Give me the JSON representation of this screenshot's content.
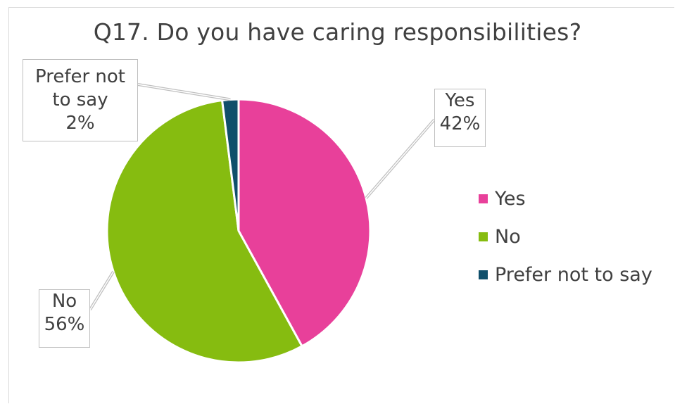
{
  "chart_data": {
    "type": "pie",
    "title": "Q17. Do you have caring responsibilities?",
    "categories": [
      "Yes",
      "No",
      "Prefer not to say"
    ],
    "values": [
      42,
      56,
      2
    ],
    "unit": "%",
    "colors": [
      "#e8409a",
      "#86bc10",
      "#0f4f6b"
    ],
    "data_labels": [
      {
        "name": "Yes",
        "value": "42%"
      },
      {
        "name": "No",
        "value": "56%"
      },
      {
        "name_line1": "Prefer not",
        "name_line2": "to say",
        "value": "2%"
      }
    ],
    "legend": {
      "placement": "right",
      "items": [
        "Yes",
        "No",
        "Prefer not to say"
      ]
    }
  }
}
